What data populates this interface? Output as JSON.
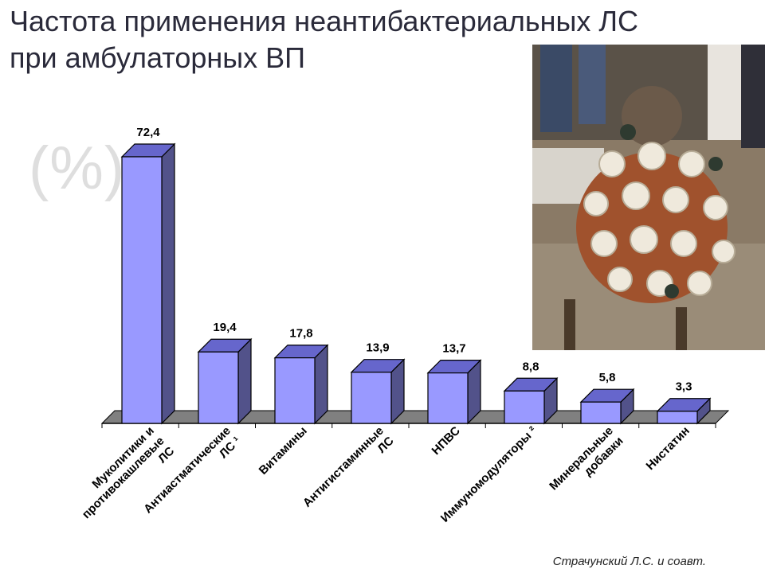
{
  "slide": {
    "title_line1": "Частота применения неантибактериальных ЛС",
    "title_line2": "при амбулаторных ВП",
    "unit": "(%)",
    "source": "Страчунский Л.С. и соавт."
  },
  "photo": {
    "icon": "street-vendor-with-cups-photo"
  },
  "colors": {
    "bar_front": "#9999ff",
    "bar_top": "#6666cc",
    "bar_side": "#52528a",
    "floor": "#808080",
    "title": "#2a2a3a"
  },
  "chart_data": {
    "type": "bar",
    "categories": [
      [
        "Муколитики и",
        "противокашлевые",
        "ЛС"
      ],
      [
        "Антиастматические",
        "ЛС ¹"
      ],
      [
        "Витамины"
      ],
      [
        "Антигистаминные",
        "ЛС"
      ],
      [
        "НПВС"
      ],
      [
        "Иммуномодуляторы ²"
      ],
      [
        "Минеральные",
        "добавки"
      ],
      [
        "Нистатин"
      ]
    ],
    "values": [
      72.4,
      19.4,
      17.8,
      13.9,
      13.7,
      8.8,
      5.8,
      3.3
    ],
    "value_labels": [
      "72,4",
      "19,4",
      "17,8",
      "13,9",
      "13,7",
      "8,8",
      "5,8",
      "3,3"
    ],
    "ylim": [
      0,
      75
    ],
    "grid": false,
    "three_d": true
  }
}
